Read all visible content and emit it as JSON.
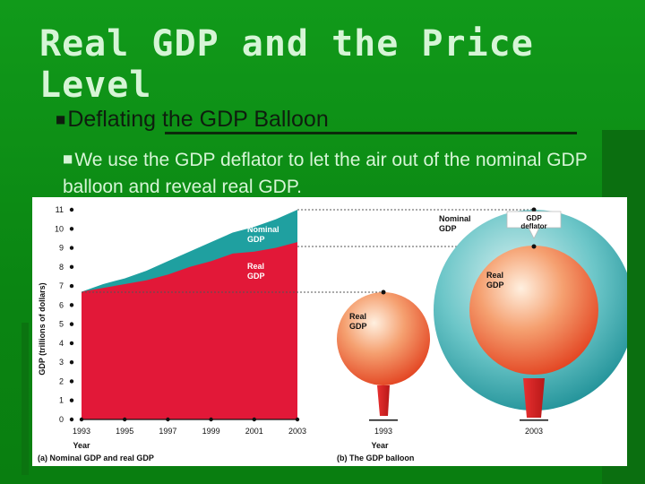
{
  "slide": {
    "title": "Real GDP and the Price Level",
    "bullet1": "Deflating the GDP Balloon",
    "bullet2": "We use the GDP deflator to let the air out of the nominal GDP balloon and reveal real GDP."
  },
  "colors": {
    "background": "#0a8a14",
    "nominal": "#1fa0a0",
    "real": "#e21838",
    "balloon_outer": "#33a8b0",
    "balloon_inner": "#ee7048"
  },
  "chart_data": [
    {
      "type": "area",
      "panel_label": "(a) Nominal GDP and real GDP",
      "xlabel": "Year",
      "ylabel": "GDP (trillions of dollars)",
      "x_ticks": [
        "1993",
        "1995",
        "1997",
        "1999",
        "2001",
        "2003"
      ],
      "y_ticks": [
        "0",
        "1",
        "2",
        "3",
        "4",
        "5",
        "6",
        "7",
        "8",
        "9",
        "10",
        "11"
      ],
      "ylim": [
        0,
        11
      ],
      "xlim": [
        1993,
        2003
      ],
      "x": [
        1993,
        1994,
        1995,
        1996,
        1997,
        1998,
        1999,
        2000,
        2001,
        2002,
        2003
      ],
      "series": [
        {
          "name": "Nominal GDP",
          "label": "Nominal GDP",
          "values": [
            6.7,
            7.1,
            7.4,
            7.8,
            8.3,
            8.8,
            9.3,
            9.8,
            10.1,
            10.5,
            11.0
          ]
        },
        {
          "name": "Real GDP",
          "label": "Real GDP",
          "values": [
            6.7,
            6.9,
            7.1,
            7.3,
            7.6,
            8.0,
            8.3,
            8.7,
            8.8,
            9.0,
            9.3
          ]
        }
      ]
    },
    {
      "type": "diagram",
      "panel_label": "(b) The GDP balloon",
      "xlabel": "Year",
      "x_ticks": [
        "1993",
        "2003"
      ],
      "labels": {
        "nominal": "Nominal GDP",
        "deflator": "GDP deflator",
        "real_big": "Real GDP",
        "real_small": "Real GDP"
      }
    }
  ]
}
